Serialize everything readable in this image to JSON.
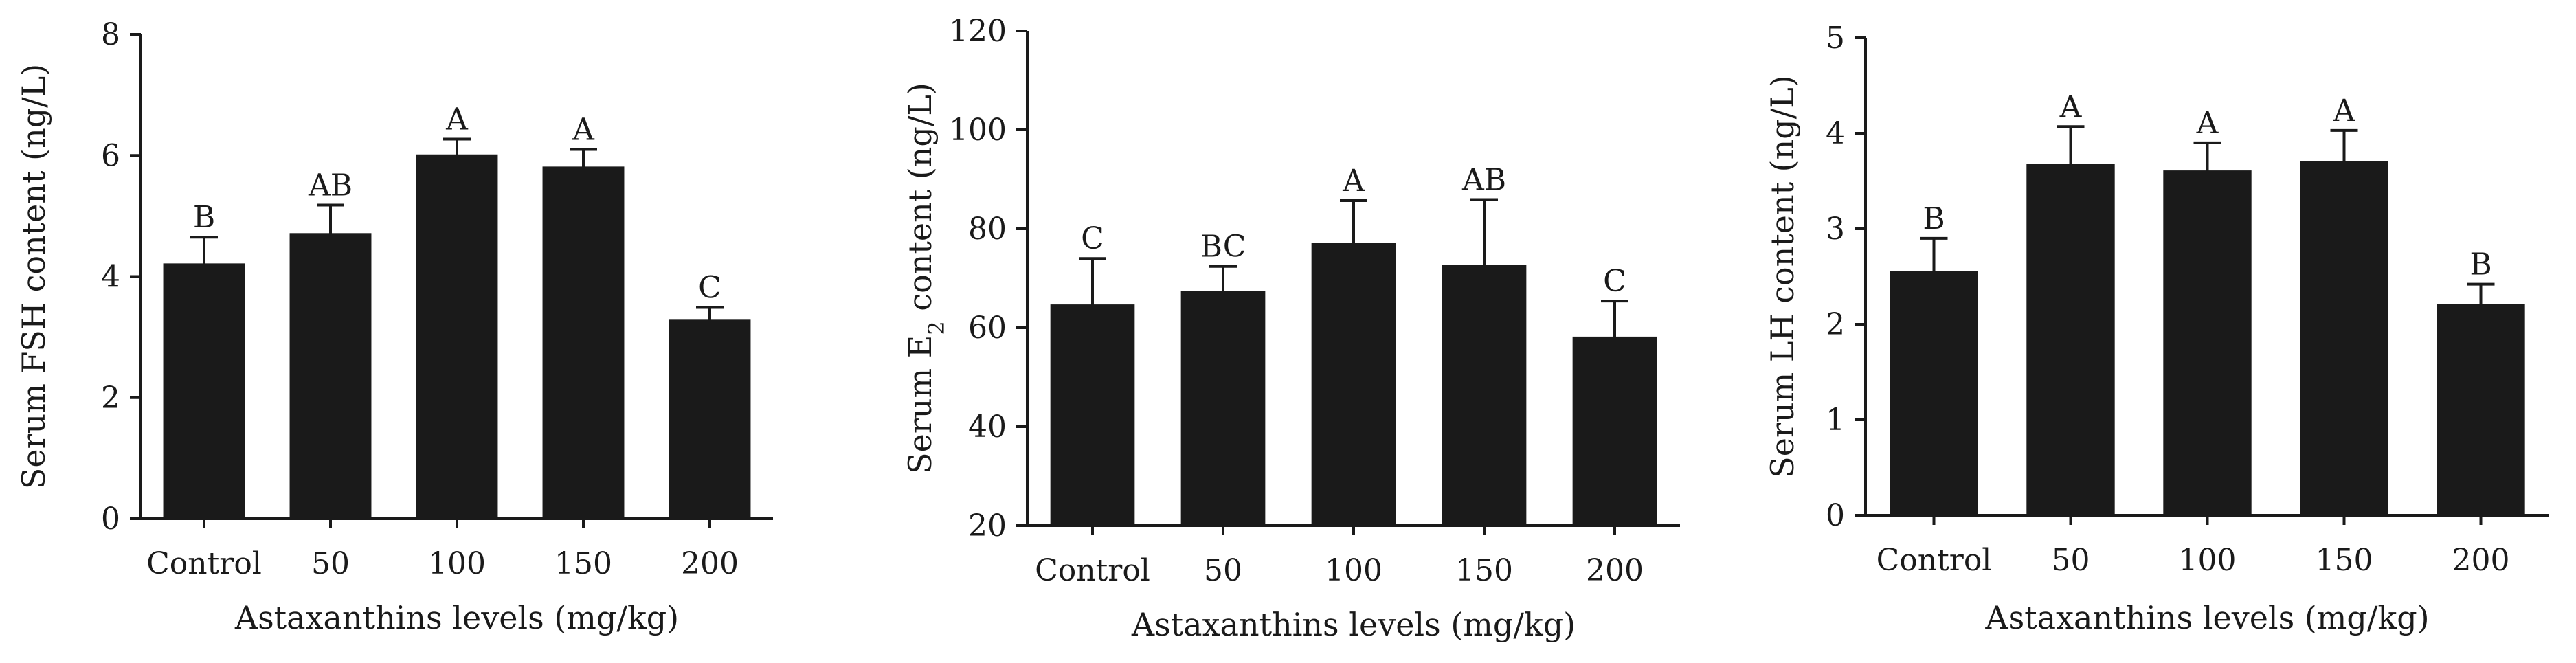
{
  "chart_data": [
    {
      "type": "bar",
      "title": "",
      "xlabel": "Astaxanthins levels (mg/kg)",
      "ylabel": "Serum FSH content (ng/L)",
      "ylabel_parts": [
        {
          "text": "Serum FSH content (ng/L)"
        }
      ],
      "categories": [
        "Control",
        "50",
        "100",
        "150",
        "200"
      ],
      "values": [
        4.2,
        4.7,
        6.0,
        5.8,
        3.27
      ],
      "error": [
        0.45,
        0.48,
        0.27,
        0.3,
        0.22
      ],
      "significance": [
        "B",
        "AB",
        "A",
        "A",
        "C"
      ],
      "ylim": [
        0,
        8
      ],
      "yticks": [
        0,
        2,
        4,
        6,
        8
      ]
    },
    {
      "type": "bar",
      "title": "",
      "xlabel": "Astaxanthins levels (mg/kg)",
      "ylabel": "Serum E2 content (ng/L)",
      "ylabel_parts": [
        {
          "text": "Serum E"
        },
        {
          "text": "2",
          "sub": true
        },
        {
          "text": " content (ng/L)"
        }
      ],
      "categories": [
        "Control",
        "50",
        "100",
        "150",
        "200"
      ],
      "values": [
        64.5,
        67.2,
        77.0,
        72.5,
        58.0
      ],
      "error": [
        9.5,
        5.2,
        8.7,
        13.4,
        7.4
      ],
      "significance": [
        "C",
        "BC",
        "A",
        "AB",
        "C"
      ],
      "ylim": [
        20,
        120
      ],
      "yticks": [
        20,
        40,
        60,
        80,
        100,
        120
      ]
    },
    {
      "type": "bar",
      "title": "",
      "xlabel": "Astaxanthins levels (mg/kg)",
      "ylabel": "Serum LH content (ng/L)",
      "ylabel_parts": [
        {
          "text": "Serum LH content (ng/L)"
        }
      ],
      "categories": [
        "Control",
        "50",
        "100",
        "150",
        "200"
      ],
      "values": [
        2.55,
        3.67,
        3.6,
        3.7,
        2.2
      ],
      "error": [
        0.35,
        0.4,
        0.3,
        0.33,
        0.22
      ],
      "significance": [
        "B",
        "A",
        "A",
        "A",
        "B"
      ],
      "ylim": [
        0,
        5
      ],
      "yticks": [
        0,
        1,
        2,
        3,
        4,
        5
      ]
    }
  ]
}
